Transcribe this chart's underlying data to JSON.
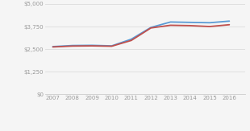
{
  "years": [
    2007,
    2008,
    2009,
    2010,
    2011,
    2012,
    2013,
    2014,
    2015,
    2016
  ],
  "south_puget": [
    2640,
    2700,
    2710,
    2680,
    3050,
    3700,
    4000,
    3980,
    3960,
    4050
  ],
  "wa_avg": [
    2620,
    2670,
    2680,
    2660,
    2980,
    3670,
    3820,
    3800,
    3750,
    3850
  ],
  "south_puget_color": "#5b9bd5",
  "wa_avg_color": "#c0504d",
  "background_color": "#f5f5f5",
  "grid_color": "#dcdcdc",
  "ylim": [
    0,
    5000
  ],
  "yticks": [
    0,
    1250,
    2500,
    3750,
    5000
  ],
  "ytick_labels": [
    "$0",
    "$1,250",
    "$2,500",
    "$3,750",
    "$5,000"
  ],
  "tick_color": "#999999",
  "axis_color": "#cccccc",
  "line_width": 1.3
}
